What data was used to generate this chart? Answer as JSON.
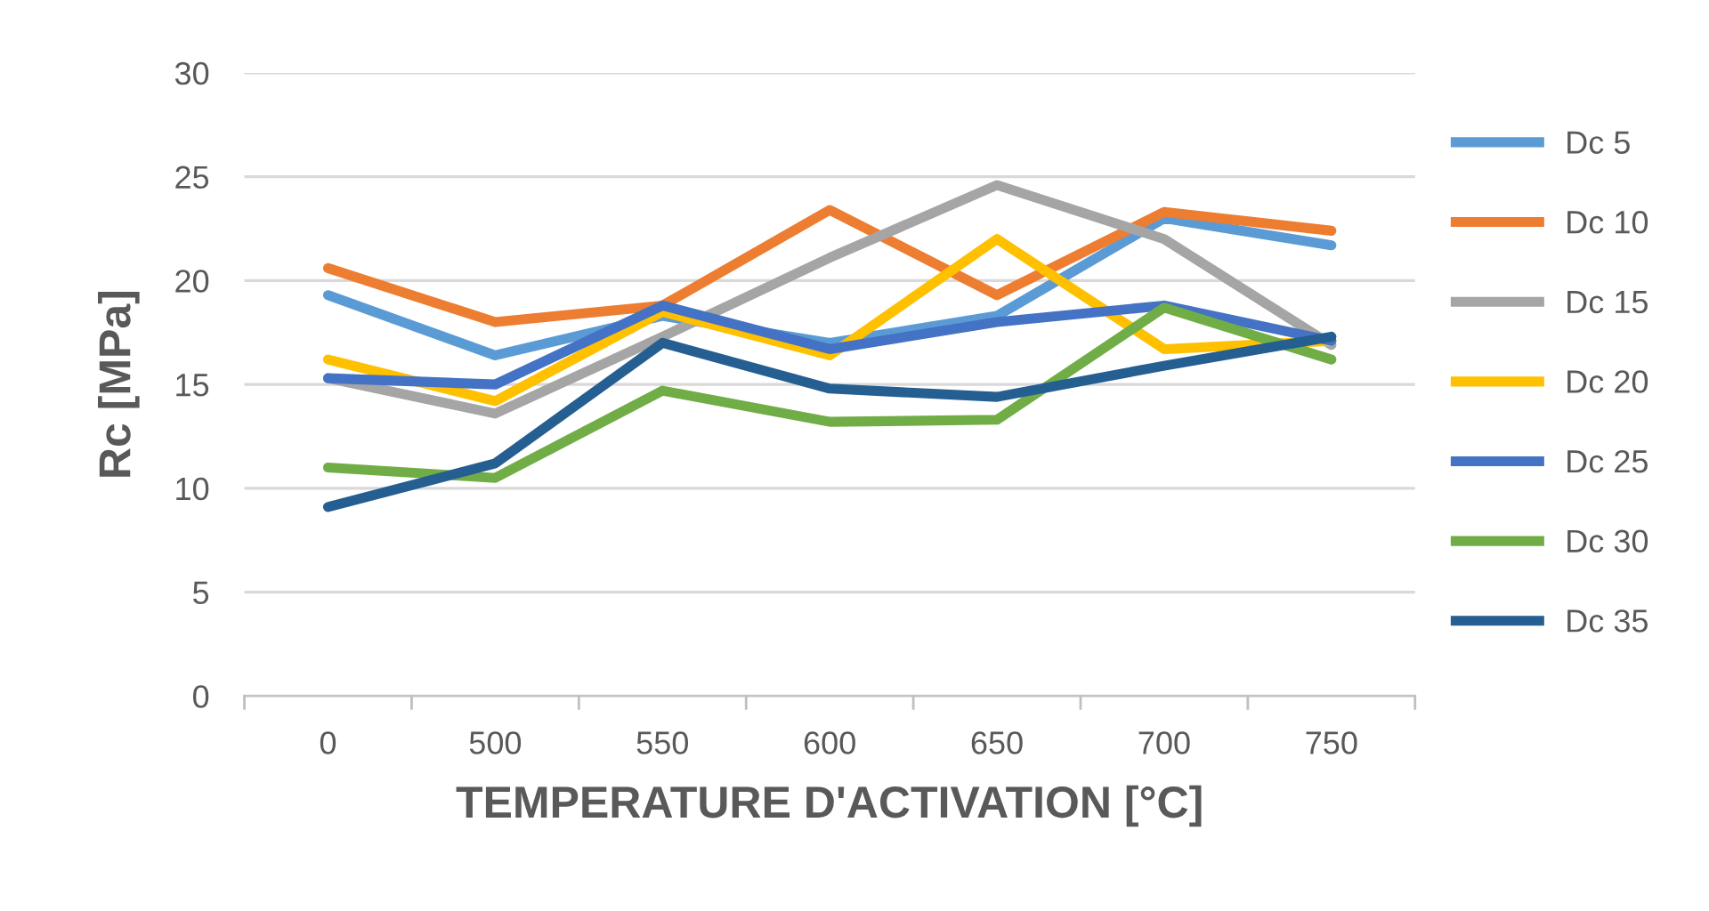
{
  "chart_data": {
    "type": "line",
    "xlabel": "TEMPERATURE D'ACTIVATION [°C]",
    "ylabel": "Rc [MPa]",
    "categories": [
      "0",
      "500",
      "550",
      "600",
      "650",
      "700",
      "750"
    ],
    "ylim": [
      0,
      30
    ],
    "yticks": [
      0,
      5,
      10,
      15,
      20,
      25,
      30
    ],
    "grid": "y",
    "legend": "right",
    "marker": "none",
    "line_style": "solid",
    "series": [
      {
        "name": "Dc 5",
        "color": "#5b9bd5",
        "values": [
          19.3,
          16.4,
          18.3,
          17.0,
          18.3,
          23.0,
          21.7
        ]
      },
      {
        "name": "Dc 10",
        "color": "#ed7d31",
        "values": [
          20.6,
          18.0,
          18.8,
          23.4,
          19.3,
          23.3,
          22.4
        ]
      },
      {
        "name": "Dc 15",
        "color": "#a5a5a5",
        "values": [
          15.3,
          13.6,
          17.3,
          21.1,
          24.6,
          22.0,
          16.9
        ]
      },
      {
        "name": "Dc 20",
        "color": "#ffc000",
        "values": [
          16.2,
          14.2,
          18.5,
          16.4,
          22.0,
          16.7,
          17.1
        ]
      },
      {
        "name": "Dc 25",
        "color": "#4472c4",
        "values": [
          15.3,
          15.0,
          18.8,
          16.7,
          18.0,
          18.8,
          17.1
        ]
      },
      {
        "name": "Dc 30",
        "color": "#70ad47",
        "values": [
          11.0,
          10.5,
          14.7,
          13.2,
          13.3,
          18.7,
          16.2
        ]
      },
      {
        "name": "Dc 35",
        "color": "#255e91",
        "values": [
          9.1,
          11.2,
          17.0,
          14.8,
          14.4,
          15.9,
          17.3
        ]
      }
    ]
  }
}
